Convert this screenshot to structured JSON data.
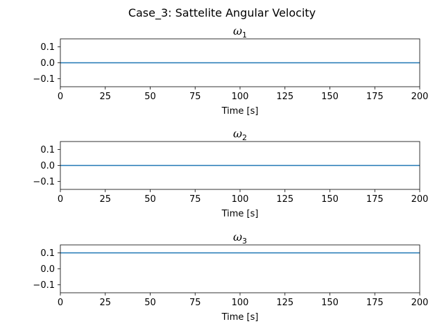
{
  "figure_title": "Case_3: Sattelite Angular Velocity",
  "chart_data": [
    {
      "type": "line",
      "title": "ω1",
      "title_symbol": "ω",
      "title_subscript": "1",
      "xlabel": "Time [s]",
      "ylabel": "",
      "xlim": [
        0,
        200
      ],
      "ylim": [
        -0.15,
        0.15
      ],
      "xticks": [
        0,
        25,
        50,
        75,
        100,
        125,
        150,
        175,
        200
      ],
      "yticks": [
        -0.1,
        0.0,
        0.1
      ],
      "ytick_labels": [
        "−0.1",
        "0.0",
        "0.1"
      ],
      "grid": false,
      "color": "#1f77b4",
      "series": [
        {
          "x": [
            0,
            200
          ],
          "y": [
            0.0,
            0.0
          ]
        }
      ]
    },
    {
      "type": "line",
      "title": "ω2",
      "title_symbol": "ω",
      "title_subscript": "2",
      "xlabel": "Time [s]",
      "ylabel": "",
      "xlim": [
        0,
        200
      ],
      "ylim": [
        -0.15,
        0.15
      ],
      "xticks": [
        0,
        25,
        50,
        75,
        100,
        125,
        150,
        175,
        200
      ],
      "yticks": [
        -0.1,
        0.0,
        0.1
      ],
      "ytick_labels": [
        "−0.1",
        "0.0",
        "0.1"
      ],
      "grid": false,
      "color": "#1f77b4",
      "series": [
        {
          "x": [
            0,
            200
          ],
          "y": [
            0.0,
            0.0
          ]
        }
      ]
    },
    {
      "type": "line",
      "title": "ω3",
      "title_symbol": "ω",
      "title_subscript": "3",
      "xlabel": "Time [s]",
      "ylabel": "",
      "xlim": [
        0,
        200
      ],
      "ylim": [
        -0.15,
        0.15
      ],
      "xticks": [
        0,
        25,
        50,
        75,
        100,
        125,
        150,
        175,
        200
      ],
      "yticks": [
        -0.1,
        0.0,
        0.1
      ],
      "ytick_labels": [
        "−0.1",
        "0.0",
        "0.1"
      ],
      "grid": false,
      "color": "#1f77b4",
      "series": [
        {
          "x": [
            0,
            200
          ],
          "y": [
            0.1,
            0.1
          ]
        }
      ]
    }
  ]
}
